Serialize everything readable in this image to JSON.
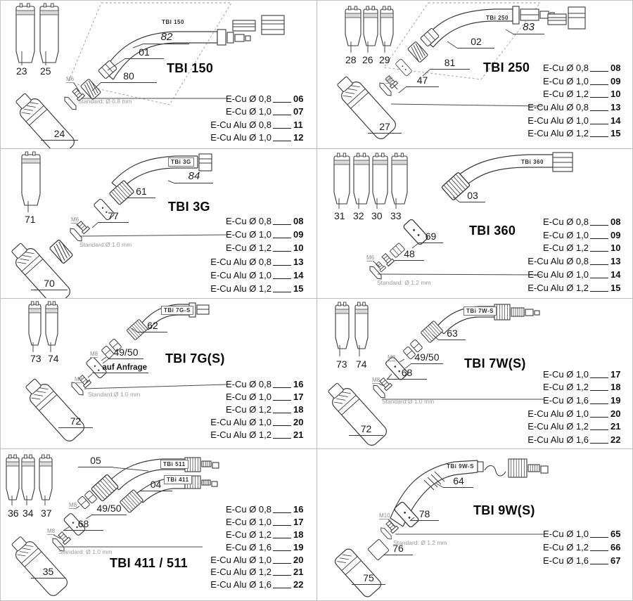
{
  "colors": {
    "line": "#3a3a3a",
    "divider": "#bdbdbd",
    "note_gray": "#9b9b9b",
    "text": "#111111",
    "background": "#ffffff"
  },
  "panels": [
    {
      "id": "tbi-150",
      "title": "TBI 150",
      "badges": [
        {
          "text": "TBI 150"
        }
      ],
      "callouts": [
        {
          "text": "23",
          "kind": "nozzle-number"
        },
        {
          "text": "25",
          "kind": "nozzle-number"
        },
        {
          "text": "82",
          "kind": "part-number-italic"
        },
        {
          "text": "01",
          "kind": "part-number"
        },
        {
          "text": "80",
          "kind": "part-number"
        },
        {
          "text": "M6",
          "kind": "thread-size"
        },
        {
          "text": "24",
          "kind": "part-number"
        },
        {
          "text": "Standard: Ø 0.8 mm",
          "kind": "note"
        }
      ],
      "ecu_rows": [
        {
          "label": "E-Cu Ø 0,8",
          "code": "06"
        },
        {
          "label": "E-Cu Ø 1,0",
          "code": "07"
        },
        {
          "label": "E-Cu Alu Ø 0,8",
          "code": "11"
        },
        {
          "label": "E-Cu Alu Ø 1,0",
          "code": "12"
        }
      ]
    },
    {
      "id": "tbi-250",
      "title": "TBI 250",
      "badges": [
        {
          "text": "TBi 250"
        }
      ],
      "callouts": [
        {
          "text": "28",
          "kind": "nozzle-number"
        },
        {
          "text": "26",
          "kind": "nozzle-number"
        },
        {
          "text": "29",
          "kind": "nozzle-number"
        },
        {
          "text": "83",
          "kind": "part-number-italic"
        },
        {
          "text": "02",
          "kind": "part-number"
        },
        {
          "text": "81",
          "kind": "part-number"
        },
        {
          "text": "47",
          "kind": "part-number"
        },
        {
          "text": "M6",
          "kind": "thread-size"
        },
        {
          "text": "27",
          "kind": "part-number"
        }
      ],
      "ecu_rows": [
        {
          "label": "E-Cu Ø 0,8",
          "code": "08"
        },
        {
          "label": "E-Cu Ø 1,0",
          "code": "09"
        },
        {
          "label": "E-Cu Ø 1,2",
          "code": "10"
        },
        {
          "label": "E-Cu Alu Ø 0,8",
          "code": "13"
        },
        {
          "label": "E-Cu Alu Ø 1,0",
          "code": "14"
        },
        {
          "label": "E-Cu Alu Ø 1,2",
          "code": "15"
        }
      ]
    },
    {
      "id": "tbi-3g",
      "title": "TBI 3G",
      "badges": [
        {
          "text": "TBi 3G"
        }
      ],
      "callouts": [
        {
          "text": "71",
          "kind": "nozzle-number"
        },
        {
          "text": "84",
          "kind": "part-number-italic"
        },
        {
          "text": "61",
          "kind": "part-number"
        },
        {
          "text": "77",
          "kind": "part-number"
        },
        {
          "text": "M6",
          "kind": "thread-size"
        },
        {
          "text": "70",
          "kind": "part-number"
        },
        {
          "text": "Standard:Ø 1.0 mm",
          "kind": "note"
        }
      ],
      "ecu_rows": [
        {
          "label": "E-Cu Ø 0,8",
          "code": "08"
        },
        {
          "label": "E-Cu Ø 1,0",
          "code": "09"
        },
        {
          "label": "E-Cu Ø 1,2",
          "code": "10"
        },
        {
          "label": "E-Cu Alu Ø 0,8",
          "code": "13"
        },
        {
          "label": "E-Cu Alu Ø 1,0",
          "code": "14"
        },
        {
          "label": "E-Cu Alu Ø 1,2",
          "code": "15"
        }
      ]
    },
    {
      "id": "tbi-360",
      "title": "TBI 360",
      "badges": [
        {
          "text": "TBi 360"
        }
      ],
      "callouts": [
        {
          "text": "31",
          "kind": "nozzle-number"
        },
        {
          "text": "32",
          "kind": "nozzle-number"
        },
        {
          "text": "30",
          "kind": "nozzle-number"
        },
        {
          "text": "33",
          "kind": "nozzle-number"
        },
        {
          "text": "03",
          "kind": "part-number"
        },
        {
          "text": "69",
          "kind": "part-number"
        },
        {
          "text": "48",
          "kind": "part-number"
        },
        {
          "text": "M6",
          "kind": "thread-size"
        },
        {
          "text": "Standard: Ø 1.2 mm",
          "kind": "note"
        }
      ],
      "ecu_rows": [
        {
          "label": "E-Cu Ø 0,8",
          "code": "08"
        },
        {
          "label": "E-Cu Ø 1,0",
          "code": "09"
        },
        {
          "label": "E-Cu Ø 1,2",
          "code": "10"
        },
        {
          "label": "E-Cu Alu Ø 0,8",
          "code": "13"
        },
        {
          "label": "E-Cu Alu Ø 1,0",
          "code": "14"
        },
        {
          "label": "E-Cu Alu Ø 1,2",
          "code": "15"
        }
      ]
    },
    {
      "id": "tbi-7gs",
      "title": "TBI 7G(S)",
      "badges": [
        {
          "text": "TBi 7G-S"
        }
      ],
      "callouts": [
        {
          "text": "73",
          "kind": "nozzle-number"
        },
        {
          "text": "74",
          "kind": "nozzle-number"
        },
        {
          "text": "62",
          "kind": "part-number"
        },
        {
          "text": "49/50",
          "kind": "part-number"
        },
        {
          "text": "auf Anfrage",
          "kind": "availability-note"
        },
        {
          "text": "M8",
          "kind": "thread-size"
        },
        {
          "text": "M8",
          "kind": "thread-size"
        },
        {
          "text": "Standard:Ø 1.0 mm",
          "kind": "note"
        },
        {
          "text": "72",
          "kind": "part-number"
        }
      ],
      "ecu_rows": [
        {
          "label": "E-Cu Ø 0,8",
          "code": "16"
        },
        {
          "label": "E-Cu Ø 1,0",
          "code": "17"
        },
        {
          "label": "E-Cu Ø 1,2",
          "code": "18"
        },
        {
          "label": "E-Cu Alu Ø 1,0",
          "code": "20"
        },
        {
          "label": "E-Cu Alu Ø 1,2",
          "code": "21"
        }
      ]
    },
    {
      "id": "tbi-7ws",
      "title": "TBI 7W(S)",
      "badges": [
        {
          "text": "TBi 7W-S"
        }
      ],
      "callouts": [
        {
          "text": "73",
          "kind": "nozzle-number"
        },
        {
          "text": "74",
          "kind": "nozzle-number"
        },
        {
          "text": "63",
          "kind": "part-number"
        },
        {
          "text": "49/50",
          "kind": "part-number"
        },
        {
          "text": "M8",
          "kind": "thread-size"
        },
        {
          "text": "68",
          "kind": "part-number"
        },
        {
          "text": "M8",
          "kind": "thread-size"
        },
        {
          "text": "Standard:Ø 1.0 mm",
          "kind": "note"
        },
        {
          "text": "72",
          "kind": "part-number"
        }
      ],
      "ecu_rows": [
        {
          "label": "E-Cu Ø 1,0",
          "code": "17"
        },
        {
          "label": "E-Cu Ø 1,2",
          "code": "18"
        },
        {
          "label": "E-Cu Ø 1,6",
          "code": "19"
        },
        {
          "label": "E-Cu Alu Ø 1,0",
          "code": "20"
        },
        {
          "label": "E-Cu Alu Ø 1,2",
          "code": "21"
        },
        {
          "label": "E-Cu Alu Ø 1,6",
          "code": "22"
        }
      ]
    },
    {
      "id": "tbi-411-511",
      "title": "TBI 411 / 511",
      "badges": [
        {
          "text": "TBi 511"
        },
        {
          "text": "TBi 411"
        }
      ],
      "callouts": [
        {
          "text": "36",
          "kind": "nozzle-number"
        },
        {
          "text": "34",
          "kind": "nozzle-number"
        },
        {
          "text": "37",
          "kind": "nozzle-number"
        },
        {
          "text": "05",
          "kind": "part-number"
        },
        {
          "text": "04",
          "kind": "part-number"
        },
        {
          "text": "49/50",
          "kind": "part-number"
        },
        {
          "text": "M8",
          "kind": "thread-size"
        },
        {
          "text": "68",
          "kind": "part-number"
        },
        {
          "text": "M8",
          "kind": "thread-size"
        },
        {
          "text": "Standard: Ø 1.0 mm",
          "kind": "note"
        },
        {
          "text": "35",
          "kind": "part-number"
        }
      ],
      "ecu_rows": [
        {
          "label": "E-Cu Ø 0,8",
          "code": "16"
        },
        {
          "label": "E-Cu Ø 1,0",
          "code": "17"
        },
        {
          "label": "E-Cu Ø 1,2",
          "code": "18"
        },
        {
          "label": "E-Cu Ø 1,6",
          "code": "19"
        },
        {
          "label": "E-Cu Alu Ø 1,0",
          "code": "20"
        },
        {
          "label": "E-Cu Alu Ø 1,2",
          "code": "21"
        },
        {
          "label": "E-Cu Alu Ø 1,6",
          "code": "22"
        }
      ]
    },
    {
      "id": "tbi-9ws",
      "title": "TBI 9W(S)",
      "badges": [
        {
          "text": "TBi 9W-S"
        }
      ],
      "callouts": [
        {
          "text": "64",
          "kind": "part-number"
        },
        {
          "text": "78",
          "kind": "part-number"
        },
        {
          "text": "M10",
          "kind": "thread-size"
        },
        {
          "text": "Standard: Ø 1.2 mm",
          "kind": "note"
        },
        {
          "text": "76",
          "kind": "part-number"
        },
        {
          "text": "75",
          "kind": "part-number"
        }
      ],
      "ecu_rows": [
        {
          "label": "E-Cu Ø 1,0",
          "code": "65"
        },
        {
          "label": "E-Cu Ø 1,2",
          "code": "66"
        },
        {
          "label": "E-Cu Ø 1,6",
          "code": "67"
        }
      ]
    }
  ]
}
